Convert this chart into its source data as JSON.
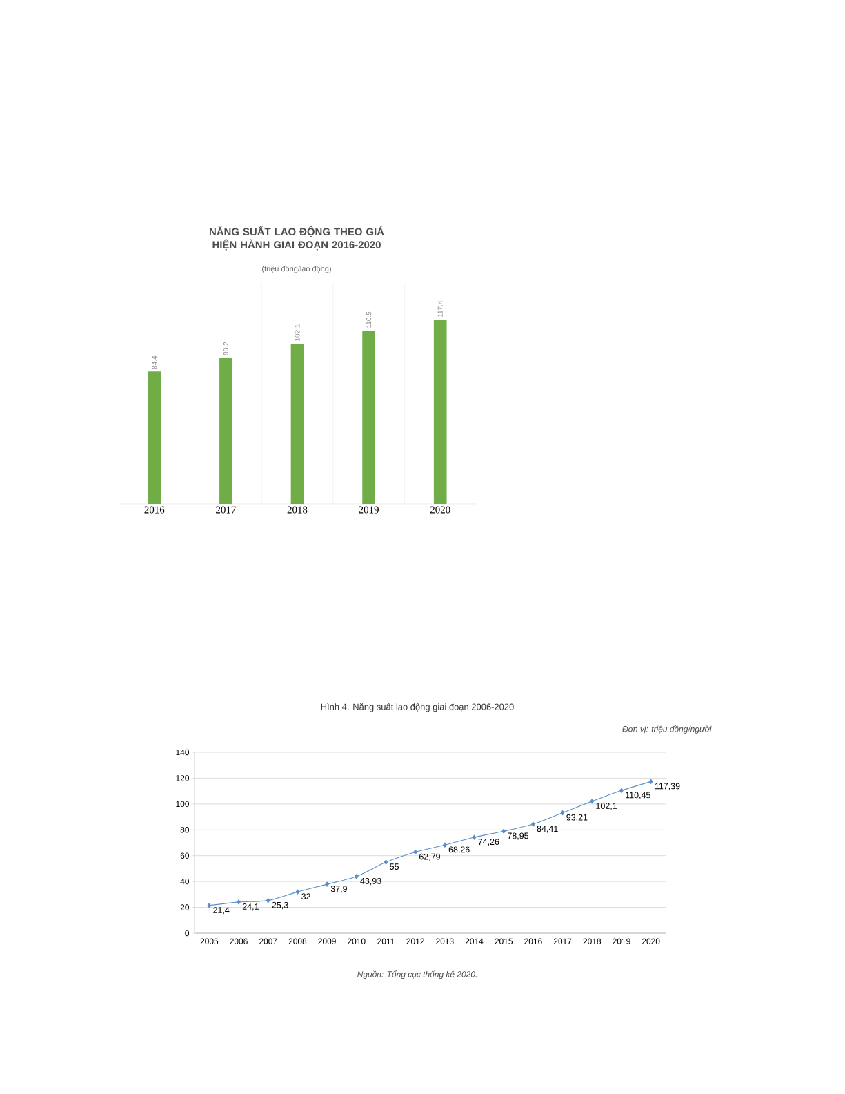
{
  "chart_data": [
    {
      "type": "bar",
      "title": "NĂNG SUẤT LAO ĐỘNG THEO GIÁ HIỆN HÀNH GIAI ĐOẠN 2016-2020",
      "subtitle": "(triệu đồng/lao động)",
      "categories": [
        "2016",
        "2017",
        "2018",
        "2019",
        "2020"
      ],
      "values": [
        84.4,
        93.2,
        102.1,
        110.5,
        117.4
      ],
      "color": "#70ad47",
      "data_labels": true
    },
    {
      "type": "line",
      "title": "Hình 4. Năng suất lao động giai đoạn 2006-2020",
      "subtitle": "Đơn vị: triệu đồng/người",
      "annotations": [
        "Nguồn: Tổng cục thống kê 2020."
      ],
      "categories": [
        "2005",
        "2006",
        "2007",
        "2008",
        "2009",
        "2010",
        "2011",
        "2012",
        "2013",
        "2014",
        "2015",
        "2016",
        "2017",
        "2018",
        "2019",
        "2020"
      ],
      "values": [
        21.4,
        24.1,
        25.3,
        32,
        37.9,
        43.93,
        55,
        62.79,
        68.26,
        74.26,
        78.95,
        84.41,
        93.21,
        102.1,
        110.45,
        117.39
      ],
      "value_labels": [
        "21,4",
        "24,1",
        "25,3",
        "32",
        "37,9",
        "43,93",
        "55",
        "62,79",
        "68,26",
        "74,26",
        "78,95",
        "84,41",
        "93,21",
        "102,1",
        "110,45",
        "117,39"
      ],
      "color": "#5b8fc7",
      "ylim": [
        0,
        140
      ],
      "yticks": [
        0,
        20,
        40,
        60,
        80,
        100,
        120,
        140
      ],
      "grid": "y",
      "marker": "diamond",
      "line_style": "solid"
    }
  ]
}
